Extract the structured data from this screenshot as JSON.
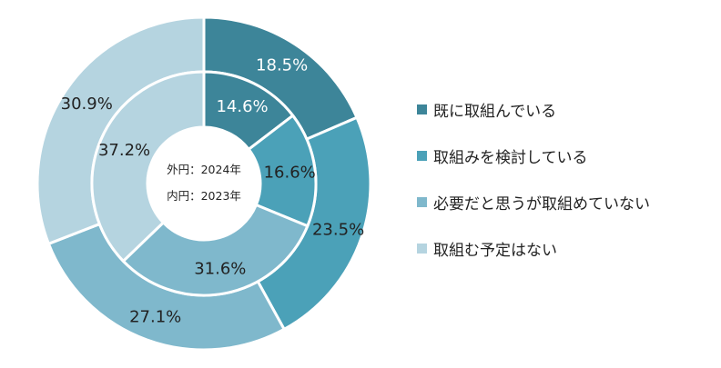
{
  "chart_data": {
    "type": "donut",
    "title": "",
    "center_labels": [
      "外円：2024年",
      "内円：2023年"
    ],
    "categories": [
      "既に取組んでいる",
      "取組みを検討している",
      "必要だと思うが取組めていない",
      "取組む予定はない"
    ],
    "colors": [
      "#3d8599",
      "#4ba1b8",
      "#7fb8cc",
      "#b5d4e0"
    ],
    "series": [
      {
        "name": "2024年 (外円)",
        "ring": "outer",
        "values": [
          18.5,
          23.5,
          27.1,
          30.9
        ]
      },
      {
        "name": "2023年 (内円)",
        "ring": "inner",
        "values": [
          14.6,
          16.6,
          31.6,
          37.2
        ]
      }
    ],
    "label_colors": [
      "#ffffff",
      "#222222",
      "#222222",
      "#222222"
    ],
    "legend_position": "right"
  },
  "legend": {
    "items": [
      {
        "label": "既に取組んでいる",
        "color": "#3d8599"
      },
      {
        "label": "取組みを検討している",
        "color": "#4ba1b8"
      },
      {
        "label": "必要だと思うが取組めていない",
        "color": "#7fb8cc"
      },
      {
        "label": "取組む予定はない",
        "color": "#b5d4e0"
      }
    ]
  }
}
